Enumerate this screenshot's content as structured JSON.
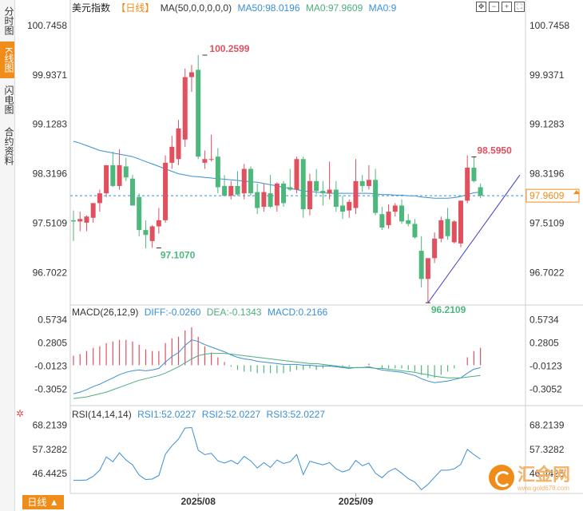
{
  "sidebar": {
    "tabs": [
      {
        "label": "分时图",
        "active": false
      },
      {
        "label": "K线图",
        "active": true
      },
      {
        "label": "闪电图",
        "active": false
      },
      {
        "label": "合约资料",
        "active": false
      }
    ]
  },
  "header": {
    "title": "美元指数",
    "period": "【日线】",
    "ma_label": "MA(50,0,0,0,0,0)",
    "ma50": "MA50:98.0196",
    "ma0a": "MA0:97.9609",
    "ma0b": "MA0:9"
  },
  "toolbar_icons": [
    "fit-icon",
    "zoom-out-icon",
    "zoom-in-icon",
    "fullscreen-icon"
  ],
  "macd_header": {
    "label": "MACD(26,12,9)",
    "diff": "DIFF:-0.0260",
    "dea": "DEA:-0.1343",
    "macd": "MACD:0.2166"
  },
  "rsi_header": {
    "label": "RSI(14,14,14)",
    "rsi1": "RSI1:52.0227",
    "rsi2": "RSI2:52.0227",
    "rsi3": "RSI3:52.0227"
  },
  "period_button": "日线 ▲",
  "watermark": {
    "name": "汇金网",
    "url": "www.gold678.com"
  },
  "colors": {
    "up": "#e0505f",
    "down": "#4cb87c",
    "ma": "#3a8fd6",
    "dea": "#4cae7c",
    "accent": "#f08c1a",
    "trend": "#3b3bc8"
  },
  "chart_data": {
    "type": "candlestick",
    "price_axis": {
      "ylim": [
        96.2,
        100.9
      ],
      "ticks": [
        "100.7458",
        "99.9371",
        "99.1283",
        "98.3196",
        "97.5109",
        "96.7022"
      ]
    },
    "x_axis": {
      "labels": [
        "2025/08",
        "2025/09"
      ]
    },
    "current_price_tag": "97.9609",
    "annotations": {
      "max": "100.2599",
      "min_left": "97.1070",
      "min_right": "96.2109",
      "recent_high": "98.5950"
    },
    "candles": [
      {
        "o": 97.56,
        "h": 97.72,
        "l": 97.22,
        "c": 97.54
      },
      {
        "o": 97.54,
        "h": 97.7,
        "l": 97.38,
        "c": 97.58
      },
      {
        "o": 97.52,
        "h": 97.64,
        "l": 97.38,
        "c": 97.62
      },
      {
        "o": 97.6,
        "h": 97.84,
        "l": 97.52,
        "c": 97.84
      },
      {
        "o": 97.84,
        "h": 98.06,
        "l": 97.7,
        "c": 98.0
      },
      {
        "o": 98.0,
        "h": 98.46,
        "l": 97.94,
        "c": 98.46
      },
      {
        "o": 98.46,
        "h": 98.68,
        "l": 98.1,
        "c": 98.12
      },
      {
        "o": 98.12,
        "h": 98.72,
        "l": 98.06,
        "c": 98.46
      },
      {
        "o": 98.44,
        "h": 98.58,
        "l": 98.2,
        "c": 98.26
      },
      {
        "o": 98.24,
        "h": 98.3,
        "l": 97.8,
        "c": 97.8
      },
      {
        "o": 97.94,
        "h": 98.0,
        "l": 97.3,
        "c": 97.4
      },
      {
        "o": 97.4,
        "h": 97.56,
        "l": 97.1,
        "c": 97.32
      },
      {
        "o": 97.22,
        "h": 97.48,
        "l": 97.11,
        "c": 97.46
      },
      {
        "o": 97.46,
        "h": 97.76,
        "l": 97.34,
        "c": 97.56
      },
      {
        "o": 97.56,
        "h": 98.62,
        "l": 97.52,
        "c": 98.5
      },
      {
        "o": 98.5,
        "h": 98.94,
        "l": 98.4,
        "c": 98.76
      },
      {
        "o": 98.56,
        "h": 99.2,
        "l": 98.46,
        "c": 99.06
      },
      {
        "o": 98.88,
        "h": 100.04,
        "l": 98.76,
        "c": 99.9
      },
      {
        "o": 99.9,
        "h": 100.1,
        "l": 99.66,
        "c": 99.98
      },
      {
        "o": 100.02,
        "h": 100.26,
        "l": 98.56,
        "c": 98.6
      },
      {
        "o": 98.5,
        "h": 98.7,
        "l": 98.4,
        "c": 98.56
      },
      {
        "o": 98.56,
        "h": 98.96,
        "l": 98.52,
        "c": 98.56
      },
      {
        "o": 98.6,
        "h": 98.74,
        "l": 98.0,
        "c": 98.1
      },
      {
        "o": 98.12,
        "h": 98.3,
        "l": 97.96,
        "c": 97.96
      },
      {
        "o": 97.96,
        "h": 98.2,
        "l": 97.9,
        "c": 98.12
      },
      {
        "o": 98.12,
        "h": 98.36,
        "l": 97.96,
        "c": 97.98
      },
      {
        "o": 98.0,
        "h": 98.48,
        "l": 97.9,
        "c": 98.4
      },
      {
        "o": 98.4,
        "h": 98.44,
        "l": 97.96,
        "c": 98.0
      },
      {
        "o": 98.02,
        "h": 98.16,
        "l": 97.66,
        "c": 97.76
      },
      {
        "o": 97.78,
        "h": 98.16,
        "l": 97.7,
        "c": 98.02
      },
      {
        "o": 98.0,
        "h": 98.3,
        "l": 97.76,
        "c": 97.78
      },
      {
        "o": 97.8,
        "h": 98.18,
        "l": 97.7,
        "c": 98.16
      },
      {
        "o": 98.16,
        "h": 98.2,
        "l": 97.78,
        "c": 97.84
      },
      {
        "o": 98.1,
        "h": 98.4,
        "l": 98.04,
        "c": 98.06
      },
      {
        "o": 98.06,
        "h": 98.6,
        "l": 98.0,
        "c": 98.56
      },
      {
        "o": 98.56,
        "h": 98.6,
        "l": 97.6,
        "c": 97.74
      },
      {
        "o": 97.74,
        "h": 98.32,
        "l": 97.64,
        "c": 98.2
      },
      {
        "o": 98.2,
        "h": 98.4,
        "l": 97.98,
        "c": 98.04
      },
      {
        "o": 98.04,
        "h": 98.2,
        "l": 97.8,
        "c": 98.0
      },
      {
        "o": 98.0,
        "h": 98.52,
        "l": 97.9,
        "c": 98.06
      },
      {
        "o": 98.06,
        "h": 98.2,
        "l": 97.7,
        "c": 97.78
      },
      {
        "o": 97.8,
        "h": 97.96,
        "l": 97.58,
        "c": 97.7
      },
      {
        "o": 97.72,
        "h": 97.9,
        "l": 97.6,
        "c": 97.86
      },
      {
        "o": 97.76,
        "h": 98.56,
        "l": 97.66,
        "c": 98.2
      },
      {
        "o": 98.2,
        "h": 98.3,
        "l": 98.02,
        "c": 98.12
      },
      {
        "o": 98.12,
        "h": 98.46,
        "l": 98.06,
        "c": 98.22
      },
      {
        "o": 98.22,
        "h": 98.4,
        "l": 97.64,
        "c": 97.68
      },
      {
        "o": 97.66,
        "h": 97.78,
        "l": 97.4,
        "c": 97.44
      },
      {
        "o": 97.48,
        "h": 97.82,
        "l": 97.42,
        "c": 97.7
      },
      {
        "o": 97.7,
        "h": 97.84,
        "l": 97.62,
        "c": 97.8
      },
      {
        "o": 97.8,
        "h": 97.9,
        "l": 97.5,
        "c": 97.54
      },
      {
        "o": 97.56,
        "h": 97.66,
        "l": 97.46,
        "c": 97.5
      },
      {
        "o": 97.5,
        "h": 97.58,
        "l": 97.26,
        "c": 97.28
      },
      {
        "o": 97.06,
        "h": 97.3,
        "l": 96.46,
        "c": 96.6
      },
      {
        "o": 96.6,
        "h": 96.9,
        "l": 96.21,
        "c": 96.94
      },
      {
        "o": 96.94,
        "h": 97.36,
        "l": 96.86,
        "c": 97.26
      },
      {
        "o": 97.26,
        "h": 97.62,
        "l": 97.2,
        "c": 97.56
      },
      {
        "o": 97.58,
        "h": 97.76,
        "l": 97.24,
        "c": 97.3
      },
      {
        "o": 97.2,
        "h": 97.56,
        "l": 97.18,
        "c": 97.54
      },
      {
        "o": 97.18,
        "h": 97.88,
        "l": 97.12,
        "c": 97.88
      },
      {
        "o": 97.88,
        "h": 98.62,
        "l": 97.84,
        "c": 98.42
      },
      {
        "o": 98.42,
        "h": 98.6,
        "l": 98.18,
        "c": 98.2
      },
      {
        "o": 98.1,
        "h": 98.16,
        "l": 97.92,
        "c": 97.96
      }
    ],
    "ma50": [
      98.85,
      98.82,
      98.78,
      98.74,
      98.7,
      98.68,
      98.66,
      98.64,
      98.62,
      98.6,
      98.56,
      98.52,
      98.48,
      98.44,
      98.4,
      98.36,
      98.32,
      98.3,
      98.28,
      98.27,
      98.26,
      98.25,
      98.24,
      98.23,
      98.22,
      98.21,
      98.2,
      98.19,
      98.18,
      98.16,
      98.14,
      98.12,
      98.1,
      98.08,
      98.06,
      98.04,
      98.03,
      98.02,
      98.01,
      98.0,
      98.0,
      98.0,
      98.0,
      98.0,
      98.0,
      98.0,
      97.99,
      97.98,
      97.98,
      97.97,
      97.97,
      97.96,
      97.96,
      97.94,
      97.93,
      97.92,
      97.92,
      97.92,
      97.93,
      97.95,
      97.98,
      98.01,
      98.02
    ],
    "trend_line": {
      "from": {
        "index": 54,
        "value": 96.21
      },
      "to": {
        "index": 68,
        "value": 98.3
      }
    },
    "macd": {
      "axis_ticks": [
        "0.5734",
        "0.2805",
        "-0.0123",
        "-0.3052"
      ],
      "ylim": [
        -0.48,
        0.66
      ],
      "diff": [
        -0.36,
        -0.34,
        -0.31,
        -0.27,
        -0.24,
        -0.2,
        -0.16,
        -0.12,
        -0.09,
        -0.07,
        -0.06,
        -0.07,
        -0.06,
        -0.04,
        0.04,
        0.11,
        0.16,
        0.25,
        0.32,
        0.3,
        0.26,
        0.23,
        0.2,
        0.17,
        0.13,
        0.1,
        0.08,
        0.07,
        0.05,
        0.04,
        0.03,
        0.02,
        0.01,
        0.01,
        0.01,
        0.0,
        0.0,
        -0.01,
        -0.01,
        -0.01,
        -0.02,
        -0.03,
        -0.04,
        -0.03,
        -0.03,
        -0.02,
        -0.04,
        -0.06,
        -0.07,
        -0.08,
        -0.09,
        -0.11,
        -0.13,
        -0.17,
        -0.2,
        -0.22,
        -0.21,
        -0.2,
        -0.18,
        -0.16,
        -0.1,
        -0.05,
        -0.03
      ],
      "dea": [
        -0.42,
        -0.41,
        -0.4,
        -0.38,
        -0.36,
        -0.34,
        -0.31,
        -0.28,
        -0.25,
        -0.22,
        -0.19,
        -0.17,
        -0.15,
        -0.13,
        -0.1,
        -0.06,
        -0.02,
        0.03,
        0.08,
        0.12,
        0.14,
        0.15,
        0.15,
        0.15,
        0.14,
        0.13,
        0.12,
        0.11,
        0.1,
        0.09,
        0.08,
        0.07,
        0.06,
        0.05,
        0.04,
        0.03,
        0.02,
        0.02,
        0.01,
        0.0,
        -0.01,
        -0.02,
        -0.03,
        -0.03,
        -0.03,
        -0.03,
        -0.04,
        -0.04,
        -0.05,
        -0.06,
        -0.07,
        -0.08,
        -0.09,
        -0.11,
        -0.12,
        -0.14,
        -0.15,
        -0.16,
        -0.16,
        -0.16,
        -0.15,
        -0.14,
        -0.13
      ],
      "hist": [
        0.12,
        0.14,
        0.18,
        0.22,
        0.24,
        0.28,
        0.3,
        0.32,
        0.32,
        0.3,
        0.26,
        0.2,
        0.18,
        0.18,
        0.28,
        0.34,
        0.36,
        0.44,
        0.48,
        0.36,
        0.24,
        0.16,
        0.1,
        0.04,
        -0.02,
        -0.06,
        -0.08,
        -0.08,
        -0.1,
        -0.1,
        -0.1,
        -0.1,
        -0.1,
        -0.08,
        -0.06,
        -0.06,
        -0.04,
        -0.06,
        -0.04,
        -0.02,
        -0.02,
        -0.02,
        -0.02,
        0.0,
        0.0,
        0.02,
        0.0,
        -0.04,
        -0.04,
        -0.04,
        -0.04,
        -0.06,
        -0.08,
        -0.12,
        -0.16,
        -0.16,
        -0.12,
        -0.08,
        -0.04,
        0.0,
        0.1,
        0.18,
        0.22
      ]
    },
    "rsi": {
      "axis_ticks": [
        "68.2139",
        "57.3282",
        "46.4425"
      ],
      "ylim": [
        37.5,
        71.0
      ],
      "values": [
        43.4,
        43.4,
        43.6,
        45.2,
        48.0,
        54.0,
        51.8,
        55.8,
        52.6,
        50.4,
        45.8,
        43.8,
        44.0,
        45.6,
        55.2,
        59.0,
        62.0,
        67.0,
        67.2,
        57.0,
        55.0,
        55.6,
        52.2,
        51.2,
        52.4,
        50.8,
        54.2,
        52.2,
        49.0,
        51.4,
        49.2,
        52.6,
        51.0,
        51.8,
        55.0,
        46.0,
        52.0,
        51.2,
        50.4,
        51.4,
        48.6,
        47.2,
        48.2,
        52.4,
        50.0,
        51.2,
        46.6,
        44.6,
        47.4,
        48.8,
        46.6,
        44.2,
        42.6,
        39.2,
        41.6,
        44.8,
        48.0,
        48.0,
        48.6,
        50.6,
        57.4,
        55.0,
        53.0
      ]
    }
  }
}
